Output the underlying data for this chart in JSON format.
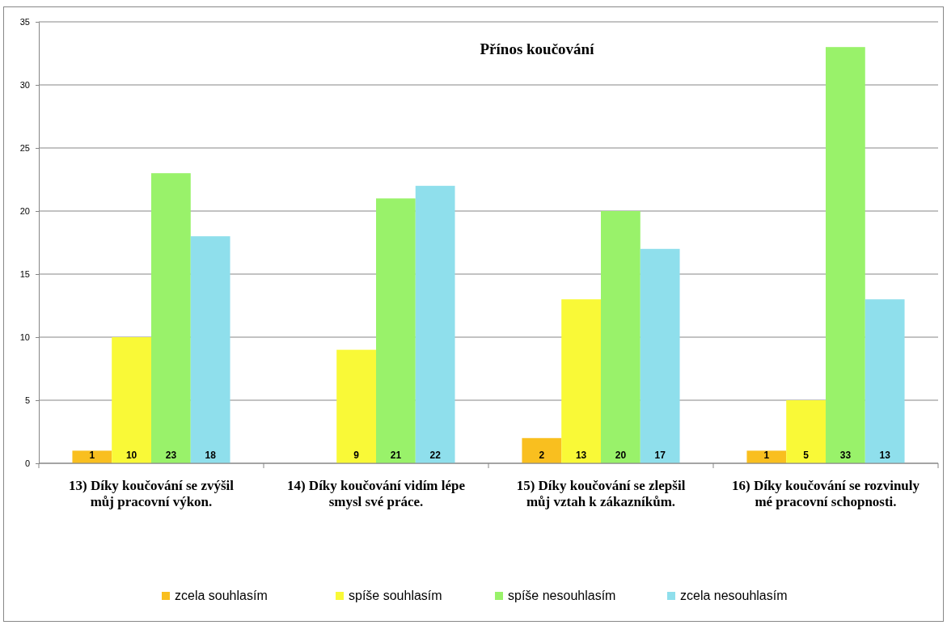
{
  "chart_data": {
    "type": "bar",
    "title": "Přínos koučování",
    "categories": [
      "13) Díky koučování se zvýšil můj pracovní výkon.",
      "14) Díky koučování vidím lépe smysl své práce.",
      "15) Díky koučování se zlepšil můj vztah k zákazníkům.",
      "16) Díky koučování se rozvinuly mé pracovní schopnosti."
    ],
    "series": [
      {
        "name": "zcela souhlasím",
        "color": "#f9bf1f",
        "values": [
          1,
          null,
          2,
          1
        ]
      },
      {
        "name": "spíše souhlasím",
        "color": "#f9f937",
        "values": [
          10,
          9,
          13,
          5
        ]
      },
      {
        "name": "spíše nesouhlasím",
        "color": "#99f26a",
        "values": [
          23,
          21,
          20,
          33
        ]
      },
      {
        "name": "zcela nesouhlasím",
        "color": "#8fdfec",
        "values": [
          18,
          22,
          17,
          13
        ]
      }
    ],
    "ylim": [
      0,
      35
    ],
    "yticks": [
      0,
      5,
      10,
      15,
      20,
      25,
      30,
      35
    ],
    "grid": "y",
    "legend": "bottom",
    "data_labels": true
  }
}
